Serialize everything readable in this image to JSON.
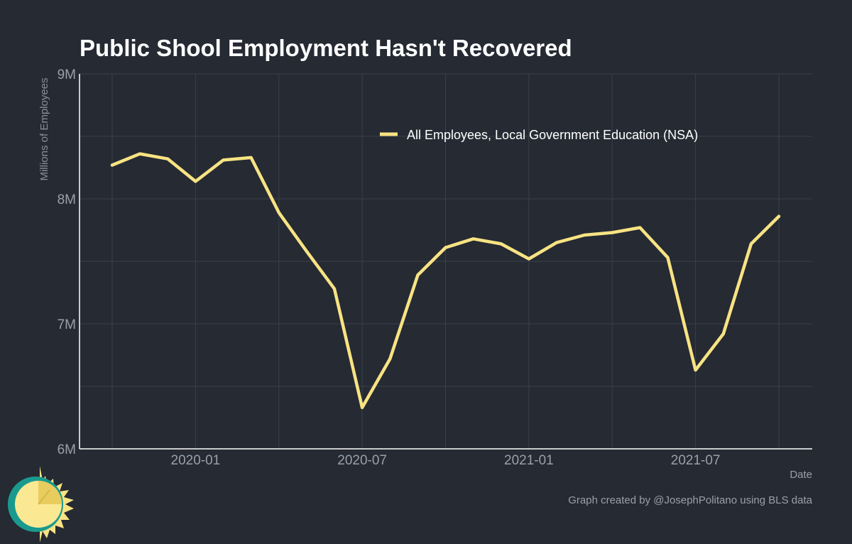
{
  "chart_data": {
    "type": "line",
    "title": "Public Shool Employment Hasn't Recovered",
    "xlabel": "Date",
    "ylabel": "Millions of Employees",
    "x_ticks": [
      "2020-01",
      "2020-07",
      "2021-01",
      "2021-07"
    ],
    "y_ticks": [
      "6M",
      "7M",
      "8M",
      "9M"
    ],
    "ylim": [
      6,
      9
    ],
    "xlim": [
      "2019-10",
      "2021-10"
    ],
    "grid": true,
    "legend_position": "top-right",
    "x": [
      "2019-10",
      "2019-11",
      "2019-12",
      "2020-01",
      "2020-02",
      "2020-03",
      "2020-04",
      "2020-05",
      "2020-06",
      "2020-07",
      "2020-08",
      "2020-09",
      "2020-10",
      "2020-11",
      "2020-12",
      "2021-01",
      "2021-02",
      "2021-03",
      "2021-04",
      "2021-05",
      "2021-06",
      "2021-07",
      "2021-08",
      "2021-09",
      "2021-10"
    ],
    "series": [
      {
        "name": "All Employees, Local Government Education (NSA)",
        "color": "#f8e383",
        "values": [
          8.27,
          8.36,
          8.32,
          8.14,
          8.31,
          8.33,
          7.89,
          7.58,
          7.28,
          6.33,
          6.72,
          7.39,
          7.61,
          7.68,
          7.64,
          7.52,
          7.65,
          7.71,
          7.73,
          7.77,
          7.53,
          6.63,
          6.92,
          7.64,
          7.86
        ]
      }
    ],
    "caption": "Graph created by @JosephPolitano using BLS data"
  },
  "colors": {
    "background": "#252a33",
    "grid": "#3a404b",
    "axis": "#ffffff",
    "line": "#f8e383"
  },
  "logo": {
    "icon": "sun-clock-logo-icon"
  }
}
